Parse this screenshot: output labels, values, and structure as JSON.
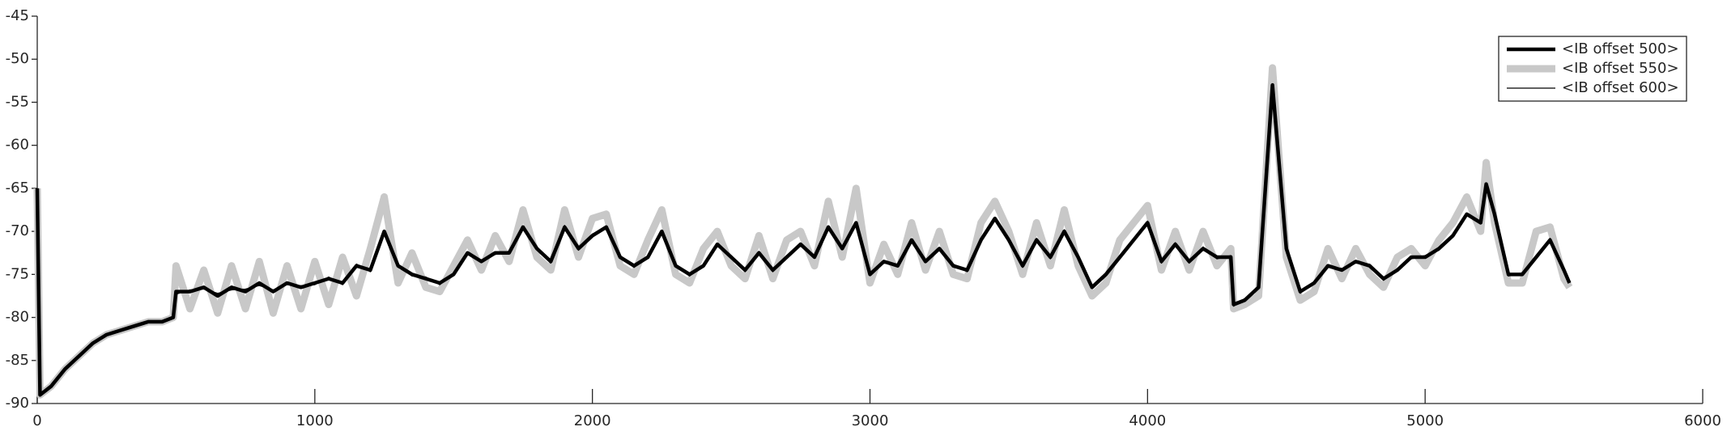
{
  "chart_data": {
    "type": "line",
    "x": [
      0,
      10,
      50,
      100,
      150,
      200,
      250,
      300,
      350,
      400,
      450,
      490,
      500,
      550,
      600,
      650,
      700,
      750,
      800,
      850,
      900,
      950,
      1000,
      1050,
      1100,
      1150,
      1200,
      1250,
      1300,
      1350,
      1400,
      1450,
      1500,
      1550,
      1600,
      1650,
      1700,
      1750,
      1800,
      1850,
      1900,
      1950,
      2000,
      2050,
      2100,
      2150,
      2200,
      2250,
      2300,
      2350,
      2400,
      2450,
      2500,
      2550,
      2600,
      2650,
      2700,
      2750,
      2800,
      2850,
      2900,
      2950,
      3000,
      3050,
      3100,
      3150,
      3200,
      3250,
      3300,
      3350,
      3400,
      3450,
      3500,
      3550,
      3600,
      3650,
      3700,
      3750,
      3800,
      3850,
      3900,
      3950,
      4000,
      4050,
      4100,
      4150,
      4200,
      4250,
      4300,
      4310,
      4350,
      4400,
      4450,
      4500,
      4550,
      4600,
      4650,
      4700,
      4750,
      4800,
      4850,
      4900,
      4950,
      5000,
      5050,
      5100,
      5150,
      5200,
      5220,
      5250,
      5300,
      5350,
      5400,
      5450,
      5500,
      5520
    ],
    "series": [
      {
        "name": "<IB offset 550>",
        "color": "#c8c8c8",
        "values": [
          -65,
          -89,
          -88,
          -86,
          -84.5,
          -83,
          -82,
          -81.5,
          -81,
          -80.5,
          -80.5,
          -80,
          -74,
          -79,
          -74.5,
          -79.5,
          -74,
          -79,
          -73.5,
          -79.5,
          -74,
          -79,
          -73.5,
          -78.5,
          -73,
          -77.5,
          -72,
          -66,
          -76,
          -72.5,
          -76.5,
          -77,
          -74,
          -71,
          -74.5,
          -70.5,
          -73.5,
          -67.5,
          -73,
          -74.5,
          -67.5,
          -73,
          -68.5,
          -68,
          -74,
          -75,
          -71,
          -67.5,
          -75,
          -76,
          -72,
          -70,
          -74,
          -75.5,
          -70.5,
          -75.5,
          -71,
          -70,
          -74,
          -66.5,
          -73,
          -65,
          -76,
          -71.5,
          -75,
          -69,
          -74.5,
          -70,
          -75,
          -75.5,
          -69,
          -66.5,
          -70,
          -75,
          -69,
          -74,
          -67.5,
          -74,
          -77.5,
          -76,
          -71,
          -69,
          -67,
          -74.5,
          -70,
          -74.5,
          -70,
          -74,
          -72,
          -79,
          -78.5,
          -77.5,
          -51,
          -73,
          -78,
          -77,
          -72,
          -75.5,
          -72,
          -75,
          -76.5,
          -73,
          -72,
          -74,
          -71,
          -69,
          -66,
          -70,
          -62,
          -69,
          -76,
          -76,
          -70,
          -69.5,
          -75.5,
          -76.5
        ]
      },
      {
        "name": "<IB offset 500>",
        "color": "#000000",
        "values": [
          -65,
          -89,
          -88,
          -86,
          -84.5,
          -83,
          -82,
          -81.5,
          -81,
          -80.5,
          -80.5,
          -80,
          -77,
          -77,
          -76.5,
          -77.5,
          -76.5,
          -77,
          -76,
          -77,
          -76,
          -76.5,
          -76,
          -75.5,
          -76,
          -74,
          -74.5,
          -70,
          -74,
          -75,
          -75.5,
          -76,
          -75,
          -72.5,
          -73.5,
          -72.5,
          -72.5,
          -69.5,
          -72,
          -73.5,
          -69.5,
          -72,
          -70.5,
          -69.5,
          -73,
          -74,
          -73,
          -70,
          -74,
          -75,
          -74,
          -71.5,
          -73,
          -74.5,
          -72.5,
          -74.5,
          -73,
          -71.5,
          -73,
          -69.5,
          -72,
          -69,
          -75,
          -73.5,
          -74,
          -71,
          -73.5,
          -72,
          -74,
          -74.5,
          -71,
          -68.5,
          -71,
          -74,
          -71,
          -73,
          -70,
          -73,
          -76.5,
          -75,
          -73,
          -71,
          -69,
          -73.5,
          -71.5,
          -73.5,
          -72,
          -73,
          -73,
          -78.5,
          -78,
          -76.5,
          -53,
          -72,
          -77,
          -76,
          -74,
          -74.5,
          -73.5,
          -74,
          -75.5,
          -74.5,
          -73,
          -73,
          -72,
          -70.5,
          -68,
          -69,
          -64.5,
          -68,
          -75,
          -75,
          -73,
          -71,
          -74.5,
          -76
        ]
      },
      {
        "name": "<IB offset 600>",
        "color": "#000000",
        "values": [
          -65,
          -89,
          -88,
          -86,
          -84.5,
          -83,
          -82,
          -81.5,
          -81,
          -80.5,
          -80.5,
          -80,
          -77.3,
          -76.8,
          -76.7,
          -77.2,
          -76.8,
          -76.7,
          -76.3,
          -76.8,
          -76.2,
          -76.3,
          -76.2,
          -75.3,
          -76.2,
          -73.8,
          -74.7,
          -70.3,
          -73.8,
          -75.2,
          -75.3,
          -76.2,
          -74.8,
          -72.7,
          -73.3,
          -72.7,
          -72.3,
          -69.7,
          -71.8,
          -73.7,
          -69.3,
          -72.2,
          -70.3,
          -69.7,
          -72.8,
          -74.2,
          -72.8,
          -70.2,
          -73.8,
          -75.2,
          -73.8,
          -71.7,
          -72.8,
          -74.7,
          -72.3,
          -74.7,
          -72.8,
          -71.7,
          -72.8,
          -69.7,
          -71.8,
          -69.2,
          -74.8,
          -73.7,
          -73.8,
          -71.2,
          -73.3,
          -72.2,
          -73.8,
          -74.7,
          -70.8,
          -68.7,
          -70.8,
          -74.2,
          -70.8,
          -73.2,
          -69.8,
          -73.2,
          -76.3,
          -75.2,
          -72.8,
          -71.2,
          -68.8,
          -73.7,
          -71.3,
          -73.7,
          -71.8,
          -73.2,
          -72.8,
          -78.7,
          -77.8,
          -76.7,
          -53.3,
          -71.8,
          -77.2,
          -75.8,
          -74.2,
          -74.3,
          -73.7,
          -73.8,
          -75.7,
          -74.3,
          -73.2,
          -72.8,
          -72.2,
          -70.3,
          -68.2,
          -68.8,
          -64.8,
          -67.8,
          -75.2,
          -74.8,
          -73.2,
          -70.8,
          -74.7,
          -75.8
        ]
      }
    ],
    "xlim": [
      0,
      6000
    ],
    "xticks": [
      0,
      1000,
      2000,
      3000,
      4000,
      5000,
      6000
    ],
    "ylim": [
      -90,
      -45
    ],
    "yticks": [
      -90,
      -85,
      -80,
      -75,
      -70,
      -65,
      -60,
      -55,
      -50,
      -45
    ],
    "legend": "upper right",
    "legend_order": [
      1,
      0,
      2
    ]
  }
}
